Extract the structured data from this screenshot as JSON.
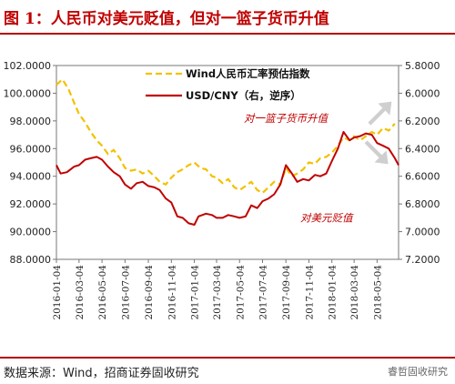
{
  "title": "图 1：人民币对美元贬值，但对一篮子货币升值",
  "source": "数据来源：Wind，招商证券固收研究",
  "watermark": "睿哲固收研究",
  "colors": {
    "brand_red": "#c00000",
    "index_line": "#f2c100",
    "usdcny_line": "#c00000",
    "arrow": "#cfcfcf"
  },
  "chart_data": {
    "type": "line",
    "x_tick_labels": [
      "2016-01-04",
      "2016-03-04",
      "2016-05-04",
      "2016-07-04",
      "2016-09-04",
      "2016-11-04",
      "2017-01-04",
      "2017-03-04",
      "2017-05-04",
      "2017-07-04",
      "2017-09-04",
      "2017-11-04",
      "2018-01-04",
      "2018-03-04",
      "2018-05-04"
    ],
    "xlim": [
      "2016-01-04",
      "2018-06-30"
    ],
    "left_axis": {
      "ylim": [
        88,
        102
      ],
      "ticks": [
        "88.0000",
        "90.0000",
        "92.0000",
        "94.0000",
        "96.0000",
        "98.0000",
        "100.0000",
        "102.0000"
      ]
    },
    "right_axis": {
      "ylim": [
        5.8,
        7.2
      ],
      "inverted": true,
      "ticks": [
        "5.8000",
        "6.0000",
        "6.2000",
        "6.4000",
        "6.6000",
        "6.8000",
        "7.0000",
        "7.2000"
      ]
    },
    "legend": {
      "position": "top-center"
    },
    "series": [
      {
        "name": "Wind人民币汇率预估指数",
        "axis": "left",
        "style": "dashed",
        "color": "#f2c100",
        "points": [
          [
            "2016-01-04",
            100.6
          ],
          [
            "2016-01-20",
            101.0
          ],
          [
            "2016-02-05",
            100.3
          ],
          [
            "2016-02-20",
            99.3
          ],
          [
            "2016-03-04",
            98.5
          ],
          [
            "2016-03-20",
            97.9
          ],
          [
            "2016-04-04",
            97.2
          ],
          [
            "2016-04-20",
            96.6
          ],
          [
            "2016-05-04",
            96.2
          ],
          [
            "2016-05-20",
            95.6
          ],
          [
            "2016-06-04",
            95.9
          ],
          [
            "2016-06-20",
            95.3
          ],
          [
            "2016-07-04",
            94.6
          ],
          [
            "2016-07-20",
            94.4
          ],
          [
            "2016-08-04",
            94.5
          ],
          [
            "2016-08-20",
            94.2
          ],
          [
            "2016-09-04",
            94.4
          ],
          [
            "2016-09-20",
            94.0
          ],
          [
            "2016-10-04",
            93.6
          ],
          [
            "2016-10-20",
            93.4
          ],
          [
            "2016-11-04",
            93.9
          ],
          [
            "2016-11-20",
            94.3
          ],
          [
            "2016-12-04",
            94.5
          ],
          [
            "2016-12-20",
            94.8
          ],
          [
            "2017-01-04",
            95.0
          ],
          [
            "2017-01-20",
            94.6
          ],
          [
            "2017-02-04",
            94.5
          ],
          [
            "2017-02-20",
            94.0
          ],
          [
            "2017-03-04",
            93.9
          ],
          [
            "2017-03-20",
            93.5
          ],
          [
            "2017-04-04",
            93.8
          ],
          [
            "2017-04-20",
            93.2
          ],
          [
            "2017-05-04",
            93.0
          ],
          [
            "2017-05-20",
            93.3
          ],
          [
            "2017-06-04",
            93.6
          ],
          [
            "2017-06-20",
            93.0
          ],
          [
            "2017-07-04",
            92.8
          ],
          [
            "2017-07-20",
            93.2
          ],
          [
            "2017-08-04",
            93.6
          ],
          [
            "2017-08-20",
            93.4
          ],
          [
            "2017-09-04",
            94.6
          ],
          [
            "2017-09-20",
            94.0
          ],
          [
            "2017-10-04",
            94.2
          ],
          [
            "2017-10-20",
            94.5
          ],
          [
            "2017-11-04",
            95.0
          ],
          [
            "2017-11-20",
            94.9
          ],
          [
            "2017-12-04",
            95.3
          ],
          [
            "2017-12-20",
            95.4
          ],
          [
            "2018-01-04",
            95.7
          ],
          [
            "2018-01-20",
            96.2
          ],
          [
            "2018-02-04",
            96.8
          ],
          [
            "2018-02-20",
            96.6
          ],
          [
            "2018-03-04",
            96.9
          ],
          [
            "2018-03-20",
            96.6
          ],
          [
            "2018-04-04",
            96.9
          ],
          [
            "2018-04-20",
            97.2
          ],
          [
            "2018-05-04",
            97.0
          ],
          [
            "2018-05-20",
            97.5
          ],
          [
            "2018-06-04",
            97.3
          ],
          [
            "2018-06-20",
            97.8
          ]
        ]
      },
      {
        "name": "USD/CNY（右，逆序）",
        "axis": "right",
        "style": "solid",
        "color": "#c00000",
        "points": [
          [
            "2016-01-04",
            6.52
          ],
          [
            "2016-01-15",
            6.58
          ],
          [
            "2016-02-01",
            6.57
          ],
          [
            "2016-02-20",
            6.53
          ],
          [
            "2016-03-04",
            6.52
          ],
          [
            "2016-03-20",
            6.48
          ],
          [
            "2016-04-04",
            6.47
          ],
          [
            "2016-04-20",
            6.46
          ],
          [
            "2016-05-04",
            6.48
          ],
          [
            "2016-05-20",
            6.53
          ],
          [
            "2016-06-04",
            6.57
          ],
          [
            "2016-06-20",
            6.6
          ],
          [
            "2016-07-04",
            6.66
          ],
          [
            "2016-07-20",
            6.69
          ],
          [
            "2016-08-04",
            6.65
          ],
          [
            "2016-08-20",
            6.64
          ],
          [
            "2016-09-04",
            6.67
          ],
          [
            "2016-09-20",
            6.68
          ],
          [
            "2016-10-04",
            6.7
          ],
          [
            "2016-10-20",
            6.76
          ],
          [
            "2016-11-04",
            6.79
          ],
          [
            "2016-11-20",
            6.89
          ],
          [
            "2016-12-04",
            6.9
          ],
          [
            "2016-12-20",
            6.94
          ],
          [
            "2017-01-04",
            6.95
          ],
          [
            "2017-01-15",
            6.89
          ],
          [
            "2017-02-04",
            6.87
          ],
          [
            "2017-02-20",
            6.88
          ],
          [
            "2017-03-04",
            6.9
          ],
          [
            "2017-03-20",
            6.9
          ],
          [
            "2017-04-04",
            6.88
          ],
          [
            "2017-04-20",
            6.89
          ],
          [
            "2017-05-04",
            6.9
          ],
          [
            "2017-05-20",
            6.89
          ],
          [
            "2017-06-04",
            6.81
          ],
          [
            "2017-06-20",
            6.83
          ],
          [
            "2017-07-04",
            6.78
          ],
          [
            "2017-07-20",
            6.76
          ],
          [
            "2017-08-04",
            6.73
          ],
          [
            "2017-08-20",
            6.66
          ],
          [
            "2017-09-04",
            6.52
          ],
          [
            "2017-09-20",
            6.58
          ],
          [
            "2017-10-04",
            6.64
          ],
          [
            "2017-10-20",
            6.62
          ],
          [
            "2017-11-04",
            6.63
          ],
          [
            "2017-11-20",
            6.59
          ],
          [
            "2017-12-04",
            6.6
          ],
          [
            "2017-12-20",
            6.58
          ],
          [
            "2018-01-04",
            6.49
          ],
          [
            "2018-01-20",
            6.4
          ],
          [
            "2018-02-04",
            6.28
          ],
          [
            "2018-02-20",
            6.34
          ],
          [
            "2018-03-04",
            6.32
          ],
          [
            "2018-03-20",
            6.31
          ],
          [
            "2018-04-04",
            6.29
          ],
          [
            "2018-04-20",
            6.3
          ],
          [
            "2018-05-04",
            6.36
          ],
          [
            "2018-05-20",
            6.38
          ],
          [
            "2018-06-04",
            6.4
          ],
          [
            "2018-06-20",
            6.47
          ],
          [
            "2018-06-30",
            6.52
          ]
        ]
      }
    ],
    "annotations": [
      "对一篮子货币升值",
      "对美元贬值"
    ]
  }
}
